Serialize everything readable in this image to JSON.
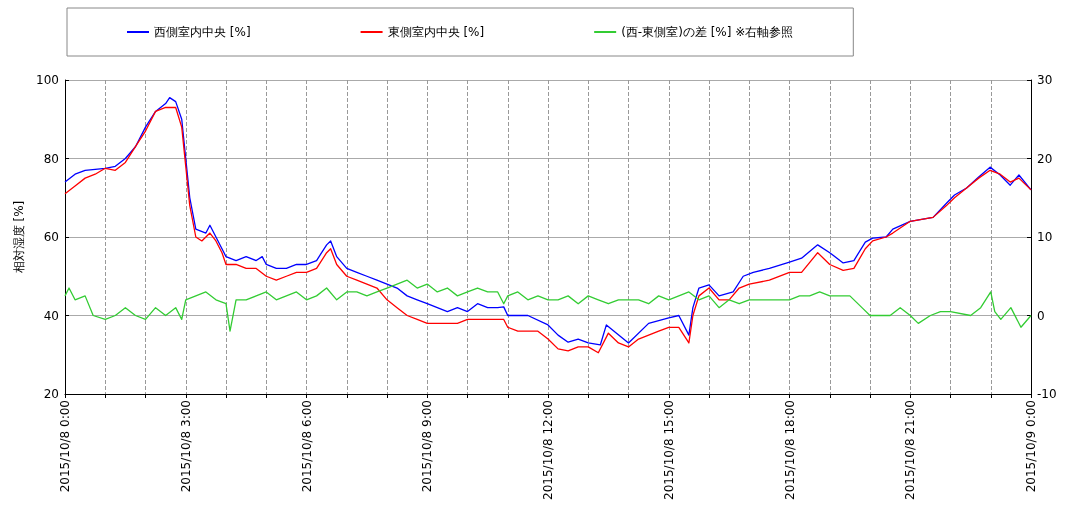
{
  "chart_data": {
    "type": "line",
    "ylabel": "相対湿度 [%]",
    "legend": "top",
    "grid": true,
    "marker": "none",
    "line_style": "solid",
    "xlim": [
      "2015-10-08T00:00",
      "2015-10-09T00:00"
    ],
    "xticks": [
      {
        "value": "2015-10-08T00:00",
        "label": "2015/10/8 0:00"
      },
      {
        "value": "2015-10-08T01:00",
        "label": null
      },
      {
        "value": "2015-10-08T02:00",
        "label": null
      },
      {
        "value": "2015-10-08T03:00",
        "label": "2015/10/8 3:00"
      },
      {
        "value": "2015-10-08T04:00",
        "label": null
      },
      {
        "value": "2015-10-08T05:00",
        "label": null
      },
      {
        "value": "2015-10-08T06:00",
        "label": "2015/10/8 6:00"
      },
      {
        "value": "2015-10-08T07:00",
        "label": null
      },
      {
        "value": "2015-10-08T08:00",
        "label": null
      },
      {
        "value": "2015-10-08T09:00",
        "label": "2015/10/8 9:00"
      },
      {
        "value": "2015-10-08T10:00",
        "label": null
      },
      {
        "value": "2015-10-08T11:00",
        "label": null
      },
      {
        "value": "2015-10-08T12:00",
        "label": "2015/10/8 12:00"
      },
      {
        "value": "2015-10-08T13:00",
        "label": null
      },
      {
        "value": "2015-10-08T14:00",
        "label": null
      },
      {
        "value": "2015-10-08T15:00",
        "label": "2015/10/8 15:00"
      },
      {
        "value": "2015-10-08T16:00",
        "label": null
      },
      {
        "value": "2015-10-08T17:00",
        "label": null
      },
      {
        "value": "2015-10-08T18:00",
        "label": "2015/10/8 18:00"
      },
      {
        "value": "2015-10-08T19:00",
        "label": null
      },
      {
        "value": "2015-10-08T20:00",
        "label": null
      },
      {
        "value": "2015-10-08T21:00",
        "label": "2015/10/8 21:00"
      },
      {
        "value": "2015-10-08T22:00",
        "label": null
      },
      {
        "value": "2015-10-08T23:00",
        "label": null
      },
      {
        "value": "2015-10-09T00:00",
        "label": "2015/10/9 0:00"
      }
    ],
    "ylim": [
      20,
      100
    ],
    "yticks": [
      20,
      40,
      60,
      80,
      100
    ],
    "y2lim": [
      -10,
      30
    ],
    "y2ticks": [
      -10,
      0,
      10,
      20,
      30
    ],
    "series": [
      {
        "name": "西側室内中央 [%]",
        "color": "#0000ff",
        "x": [
          "2015-10-08T00:00",
          "2015-10-08T00:15",
          "2015-10-08T00:30",
          "2015-10-08T01:00",
          "2015-10-08T01:15",
          "2015-10-08T01:30",
          "2015-10-08T01:45",
          "2015-10-08T02:00",
          "2015-10-08T02:15",
          "2015-10-08T02:30",
          "2015-10-08T02:36",
          "2015-10-08T02:45",
          "2015-10-08T02:54",
          "2015-10-08T03:00",
          "2015-10-08T03:06",
          "2015-10-08T03:15",
          "2015-10-08T03:30",
          "2015-10-08T03:36",
          "2015-10-08T03:45",
          "2015-10-08T03:54",
          "2015-10-08T04:00",
          "2015-10-08T04:15",
          "2015-10-08T04:30",
          "2015-10-08T04:45",
          "2015-10-08T04:54",
          "2015-10-08T05:00",
          "2015-10-08T05:15",
          "2015-10-08T05:30",
          "2015-10-08T05:45",
          "2015-10-08T06:00",
          "2015-10-08T06:15",
          "2015-10-08T06:30",
          "2015-10-08T06:36",
          "2015-10-08T06:45",
          "2015-10-08T07:00",
          "2015-10-08T07:15",
          "2015-10-08T07:30",
          "2015-10-08T07:45",
          "2015-10-08T08:00",
          "2015-10-08T08:15",
          "2015-10-08T08:30",
          "2015-10-08T08:45",
          "2015-10-08T09:00",
          "2015-10-08T09:15",
          "2015-10-08T09:30",
          "2015-10-08T09:45",
          "2015-10-08T10:00",
          "2015-10-08T10:15",
          "2015-10-08T10:30",
          "2015-10-08T10:45",
          "2015-10-08T10:54",
          "2015-10-08T11:00",
          "2015-10-08T11:30",
          "2015-10-08T12:00",
          "2015-10-08T12:15",
          "2015-10-08T12:30",
          "2015-10-08T12:45",
          "2015-10-08T13:00",
          "2015-10-08T13:18",
          "2015-10-08T13:27",
          "2015-10-08T14:00",
          "2015-10-08T14:30",
          "2015-10-08T15:00",
          "2015-10-08T15:15",
          "2015-10-08T15:30",
          "2015-10-08T15:36",
          "2015-10-08T15:45",
          "2015-10-08T16:00",
          "2015-10-08T16:15",
          "2015-10-08T16:36",
          "2015-10-08T16:51",
          "2015-10-08T17:06",
          "2015-10-08T17:30",
          "2015-10-08T18:00",
          "2015-10-08T18:18",
          "2015-10-08T18:42",
          "2015-10-08T19:00",
          "2015-10-08T19:20",
          "2015-10-08T19:36",
          "2015-10-08T19:53",
          "2015-10-08T20:04",
          "2015-10-08T20:24",
          "2015-10-08T20:34",
          "2015-10-08T21:00",
          "2015-10-08T21:34",
          "2015-10-08T21:54",
          "2015-10-08T22:06",
          "2015-10-08T22:24",
          "2015-10-08T22:42",
          "2015-10-08T22:59",
          "2015-10-08T23:14",
          "2015-10-08T23:29",
          "2015-10-08T23:42",
          "2015-10-09T00:00"
        ],
        "values": [
          74,
          76,
          77,
          77.5,
          78,
          80,
          83,
          88,
          92,
          94,
          95.5,
          94.5,
          90,
          80,
          70,
          62,
          61,
          63,
          60,
          57,
          55,
          54,
          55,
          54,
          55,
          53,
          52,
          52,
          53,
          53,
          54,
          58,
          59,
          55,
          52,
          51,
          50,
          49,
          48,
          47,
          45,
          44,
          43,
          42,
          41,
          42,
          41,
          43,
          42,
          42,
          42.2,
          40,
          40,
          37.6,
          35,
          33.2,
          34,
          33,
          32.5,
          37.6,
          33,
          38,
          39.4,
          40,
          35,
          42,
          47,
          47.8,
          45,
          46,
          50,
          51,
          52,
          53.6,
          54.6,
          58,
          56,
          53.4,
          54,
          58.7,
          59.7,
          60,
          62,
          64,
          65,
          68.6,
          70.7,
          72.5,
          75.3,
          77.8,
          75.8,
          73.2,
          75.8,
          72
        ]
      },
      {
        "name": "東側室内中央 [%]",
        "color": "#ff0000",
        "x": [
          "2015-10-08T00:00",
          "2015-10-08T00:15",
          "2015-10-08T00:30",
          "2015-10-08T00:45",
          "2015-10-08T01:00",
          "2015-10-08T01:15",
          "2015-10-08T01:30",
          "2015-10-08T01:45",
          "2015-10-08T02:00",
          "2015-10-08T02:15",
          "2015-10-08T02:30",
          "2015-10-08T02:45",
          "2015-10-08T02:54",
          "2015-10-08T03:00",
          "2015-10-08T03:06",
          "2015-10-08T03:15",
          "2015-10-08T03:24",
          "2015-10-08T03:36",
          "2015-10-08T03:45",
          "2015-10-08T03:54",
          "2015-10-08T04:00",
          "2015-10-08T04:15",
          "2015-10-08T04:30",
          "2015-10-08T04:45",
          "2015-10-08T05:00",
          "2015-10-08T05:15",
          "2015-10-08T05:30",
          "2015-10-08T05:45",
          "2015-10-08T06:00",
          "2015-10-08T06:15",
          "2015-10-08T06:30",
          "2015-10-08T06:36",
          "2015-10-08T06:45",
          "2015-10-08T07:00",
          "2015-10-08T07:15",
          "2015-10-08T07:30",
          "2015-10-08T07:45",
          "2015-10-08T08:00",
          "2015-10-08T08:15",
          "2015-10-08T08:30",
          "2015-10-08T08:45",
          "2015-10-08T09:00",
          "2015-10-08T09:15",
          "2015-10-08T09:30",
          "2015-10-08T09:45",
          "2015-10-08T10:00",
          "2015-10-08T10:15",
          "2015-10-08T10:30",
          "2015-10-08T10:45",
          "2015-10-08T10:54",
          "2015-10-08T11:00",
          "2015-10-08T11:15",
          "2015-10-08T11:30",
          "2015-10-08T11:45",
          "2015-10-08T12:00",
          "2015-10-08T12:15",
          "2015-10-08T12:30",
          "2015-10-08T12:45",
          "2015-10-08T13:00",
          "2015-10-08T13:15",
          "2015-10-08T13:30",
          "2015-10-08T13:45",
          "2015-10-08T14:00",
          "2015-10-08T14:15",
          "2015-10-08T14:30",
          "2015-10-08T14:45",
          "2015-10-08T15:00",
          "2015-10-08T15:15",
          "2015-10-08T15:30",
          "2015-10-08T15:36",
          "2015-10-08T15:45",
          "2015-10-08T16:00",
          "2015-10-08T16:15",
          "2015-10-08T16:30",
          "2015-10-08T16:45",
          "2015-10-08T17:00",
          "2015-10-08T17:30",
          "2015-10-08T18:00",
          "2015-10-08T18:18",
          "2015-10-08T18:42",
          "2015-10-08T19:00",
          "2015-10-08T19:20",
          "2015-10-08T19:36",
          "2015-10-08T19:53",
          "2015-10-08T20:04",
          "2015-10-08T20:24",
          "2015-10-08T20:34",
          "2015-10-08T21:00",
          "2015-10-08T21:34",
          "2015-10-08T21:54",
          "2015-10-08T22:06",
          "2015-10-08T22:24",
          "2015-10-08T22:42",
          "2015-10-08T22:59",
          "2015-10-08T23:14",
          "2015-10-08T23:29",
          "2015-10-08T23:42",
          "2015-10-09T00:00"
        ],
        "values": [
          71,
          73,
          75,
          76,
          77.5,
          77,
          79,
          83,
          87,
          92,
          93,
          93,
          88,
          78,
          68,
          60,
          59,
          61,
          59,
          56,
          53,
          53,
          52,
          52,
          50,
          49,
          50,
          51,
          51,
          52,
          56,
          57,
          53,
          50,
          49,
          48,
          47,
          44,
          42,
          40,
          39,
          38,
          38,
          38,
          38,
          39,
          39,
          39,
          39,
          39,
          37,
          36,
          36,
          36,
          34,
          31.5,
          31,
          32,
          32,
          30.5,
          35.5,
          33,
          32,
          34,
          35,
          36,
          37,
          37,
          33,
          40,
          45,
          47,
          44,
          44,
          47,
          48,
          49,
          51,
          51,
          56,
          53,
          51.5,
          52,
          57,
          59,
          60,
          61,
          64,
          65,
          68,
          70,
          72.5,
          75,
          77,
          76,
          74,
          75,
          72
        ]
      },
      {
        "name": "(西-東側室)の差 [%] ※右軸参照",
        "color": "#33cc33",
        "axis": "y2",
        "x": [
          "2015-10-08T00:00",
          "2015-10-08T00:06",
          "2015-10-08T00:15",
          "2015-10-08T00:30",
          "2015-10-08T00:42",
          "2015-10-08T01:00",
          "2015-10-08T01:15",
          "2015-10-08T01:30",
          "2015-10-08T01:45",
          "2015-10-08T02:00",
          "2015-10-08T02:15",
          "2015-10-08T02:30",
          "2015-10-08T02:45",
          "2015-10-08T02:54",
          "2015-10-08T03:00",
          "2015-10-08T03:15",
          "2015-10-08T03:30",
          "2015-10-08T03:45",
          "2015-10-08T04:00",
          "2015-10-08T04:06",
          "2015-10-08T04:15",
          "2015-10-08T04:30",
          "2015-10-08T04:45",
          "2015-10-08T05:00",
          "2015-10-08T05:15",
          "2015-10-08T05:30",
          "2015-10-08T05:45",
          "2015-10-08T06:00",
          "2015-10-08T06:15",
          "2015-10-08T06:30",
          "2015-10-08T06:45",
          "2015-10-08T07:00",
          "2015-10-08T07:15",
          "2015-10-08T07:30",
          "2015-10-08T07:45",
          "2015-10-08T08:00",
          "2015-10-08T08:15",
          "2015-10-08T08:30",
          "2015-10-08T08:45",
          "2015-10-08T09:00",
          "2015-10-08T09:15",
          "2015-10-08T09:30",
          "2015-10-08T09:45",
          "2015-10-08T10:00",
          "2015-10-08T10:15",
          "2015-10-08T10:30",
          "2015-10-08T10:45",
          "2015-10-08T10:54",
          "2015-10-08T11:00",
          "2015-10-08T11:15",
          "2015-10-08T11:30",
          "2015-10-08T11:45",
          "2015-10-08T12:00",
          "2015-10-08T12:15",
          "2015-10-08T12:30",
          "2015-10-08T12:45",
          "2015-10-08T13:00",
          "2015-10-08T13:15",
          "2015-10-08T13:30",
          "2015-10-08T13:45",
          "2015-10-08T14:00",
          "2015-10-08T14:15",
          "2015-10-08T14:30",
          "2015-10-08T14:45",
          "2015-10-08T15:00",
          "2015-10-08T15:15",
          "2015-10-08T15:30",
          "2015-10-08T15:45",
          "2015-10-08T16:00",
          "2015-10-08T16:15",
          "2015-10-08T16:30",
          "2015-10-08T16:45",
          "2015-10-08T17:00",
          "2015-10-08T17:30",
          "2015-10-08T18:00",
          "2015-10-08T18:15",
          "2015-10-08T18:30",
          "2015-10-08T18:45",
          "2015-10-08T19:00",
          "2015-10-08T19:15",
          "2015-10-08T19:30",
          "2015-10-08T19:48",
          "2015-10-08T20:00",
          "2015-10-08T20:30",
          "2015-10-08T20:45",
          "2015-10-08T21:00",
          "2015-10-08T21:12",
          "2015-10-08T21:30",
          "2015-10-08T21:45",
          "2015-10-08T22:00",
          "2015-10-08T22:30",
          "2015-10-08T22:45",
          "2015-10-08T23:00",
          "2015-10-08T23:06",
          "2015-10-08T23:15",
          "2015-10-08T23:30",
          "2015-10-08T23:45",
          "2015-10-09T00:00"
        ],
        "values": [
          2.5,
          3.5,
          2,
          2.5,
          0,
          -0.5,
          0,
          1,
          0,
          -0.5,
          1,
          0,
          1,
          -0.5,
          2,
          2.5,
          3,
          2,
          1.5,
          -2,
          2,
          2,
          2.5,
          3,
          2,
          2.5,
          3,
          2,
          2.5,
          3.5,
          2,
          3,
          3,
          2.5,
          3,
          3.5,
          4,
          4.5,
          3.5,
          4,
          3,
          3.5,
          2.5,
          3,
          3.5,
          3,
          3,
          1.5,
          2.5,
          3,
          2,
          2.5,
          2,
          2,
          2.5,
          1.5,
          2.5,
          2,
          1.5,
          2,
          2,
          2,
          1.5,
          2.5,
          2,
          2.5,
          3,
          2,
          2.5,
          1,
          2,
          1.5,
          2,
          2,
          2,
          2.5,
          2.5,
          3,
          2.5,
          2.5,
          2.5,
          1,
          0,
          0,
          1,
          0,
          -1,
          0,
          0.5,
          0.5,
          0,
          1,
          3,
          0.5,
          -0.5,
          1,
          -1.5,
          0
        ]
      }
    ]
  }
}
